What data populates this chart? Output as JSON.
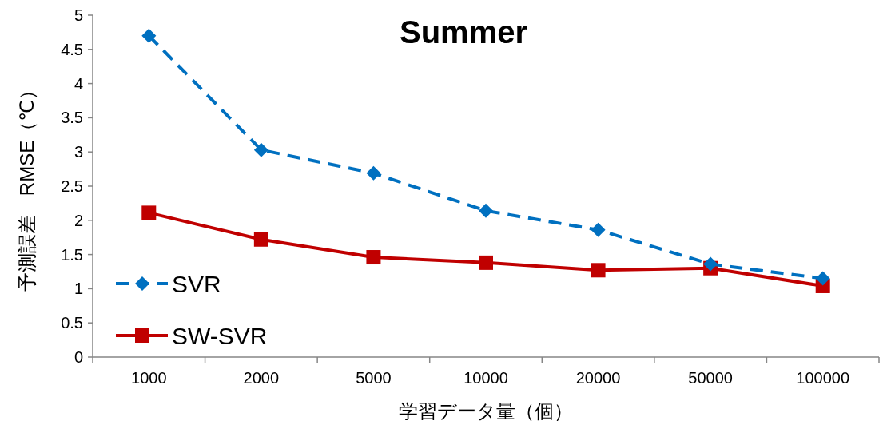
{
  "chart_data": {
    "type": "line",
    "title": "Summer",
    "xlabel": "学習データ量（個）",
    "ylabel": "予測誤差　RMSE（℃）",
    "categories": [
      "1000",
      "2000",
      "5000",
      "10000",
      "20000",
      "50000",
      "100000"
    ],
    "ylim": [
      0,
      5
    ],
    "yticks": [
      0,
      0.5,
      1,
      1.5,
      2,
      2.5,
      3,
      3.5,
      4,
      4.5,
      5
    ],
    "legend": "bottom left",
    "series": [
      {
        "name": "SVR",
        "color": "#0070c0",
        "marker": "diamond",
        "line_style": "dashed",
        "values": [
          4.7,
          3.03,
          2.69,
          2.14,
          1.86,
          1.36,
          1.15
        ]
      },
      {
        "name": "SW-SVR",
        "color": "#c00000",
        "marker": "square",
        "line_style": "solid",
        "values": [
          2.11,
          1.72,
          1.46,
          1.38,
          1.27,
          1.3,
          1.04
        ]
      }
    ]
  }
}
